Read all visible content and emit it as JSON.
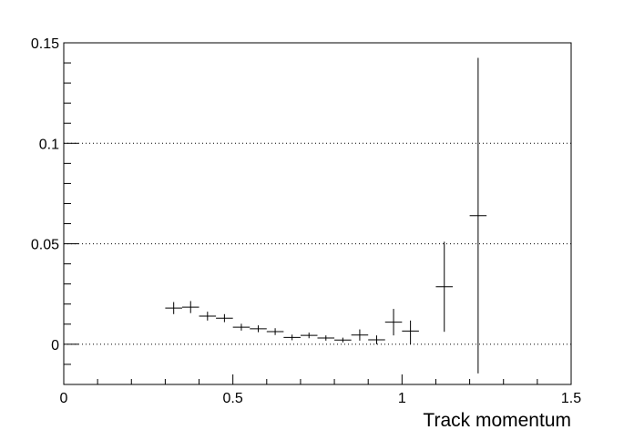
{
  "chart_data": {
    "type": "scatter",
    "style": "error-bar histogram points (cross markers)",
    "title": "",
    "xlabel": "Track momentum",
    "ylabel": "",
    "xlim": [
      0,
      1.5
    ],
    "ylim": [
      -0.02,
      0.15
    ],
    "grid": "horizontal dotted lines at y major ticks",
    "legend": "none",
    "x_ticks": [
      {
        "value": 0,
        "label": "0"
      },
      {
        "value": 0.5,
        "label": "0.5"
      },
      {
        "value": 1,
        "label": "1"
      },
      {
        "value": 1.5,
        "label": "1.5"
      }
    ],
    "y_ticks": [
      {
        "value": 0,
        "label": "0"
      },
      {
        "value": 0.05,
        "label": "0.05"
      },
      {
        "value": 0.1,
        "label": "0.1"
      },
      {
        "value": 0.15,
        "label": "0.15"
      }
    ],
    "series": [
      {
        "points": [
          {
            "x": 0.325,
            "xerr": 0.025,
            "y": 0.018,
            "ylo": 0.015,
            "yhi": 0.021
          },
          {
            "x": 0.375,
            "xerr": 0.025,
            "y": 0.0185,
            "ylo": 0.0155,
            "yhi": 0.0215
          },
          {
            "x": 0.425,
            "xerr": 0.025,
            "y": 0.014,
            "ylo": 0.0118,
            "yhi": 0.0162
          },
          {
            "x": 0.475,
            "xerr": 0.025,
            "y": 0.013,
            "ylo": 0.011,
            "yhi": 0.015
          },
          {
            "x": 0.525,
            "xerr": 0.025,
            "y": 0.0085,
            "ylo": 0.0068,
            "yhi": 0.0102
          },
          {
            "x": 0.575,
            "xerr": 0.025,
            "y": 0.0077,
            "ylo": 0.006,
            "yhi": 0.0094
          },
          {
            "x": 0.625,
            "xerr": 0.025,
            "y": 0.0063,
            "ylo": 0.0046,
            "yhi": 0.008
          },
          {
            "x": 0.675,
            "xerr": 0.025,
            "y": 0.0034,
            "ylo": 0.002,
            "yhi": 0.0048
          },
          {
            "x": 0.725,
            "xerr": 0.025,
            "y": 0.0044,
            "ylo": 0.003,
            "yhi": 0.0058
          },
          {
            "x": 0.775,
            "xerr": 0.025,
            "y": 0.0031,
            "ylo": 0.0018,
            "yhi": 0.0044
          },
          {
            "x": 0.825,
            "xerr": 0.025,
            "y": 0.0021,
            "ylo": 0.0009,
            "yhi": 0.0033
          },
          {
            "x": 0.875,
            "xerr": 0.025,
            "y": 0.0046,
            "ylo": 0.0018,
            "yhi": 0.0074
          },
          {
            "x": 0.925,
            "xerr": 0.025,
            "y": 0.0022,
            "ylo": 0.0,
            "yhi": 0.0044
          },
          {
            "x": 0.975,
            "xerr": 0.025,
            "y": 0.011,
            "ylo": 0.0044,
            "yhi": 0.0176
          },
          {
            "x": 1.025,
            "xerr": 0.025,
            "y": 0.0066,
            "ylo": 0.0,
            "yhi": 0.0118
          },
          {
            "x": 1.125,
            "xerr": 0.025,
            "y": 0.0286,
            "ylo": 0.0062,
            "yhi": 0.051
          },
          {
            "x": 1.225,
            "xerr": 0.025,
            "y": 0.064,
            "ylo": -0.0145,
            "yhi": 0.1425
          }
        ]
      }
    ]
  }
}
